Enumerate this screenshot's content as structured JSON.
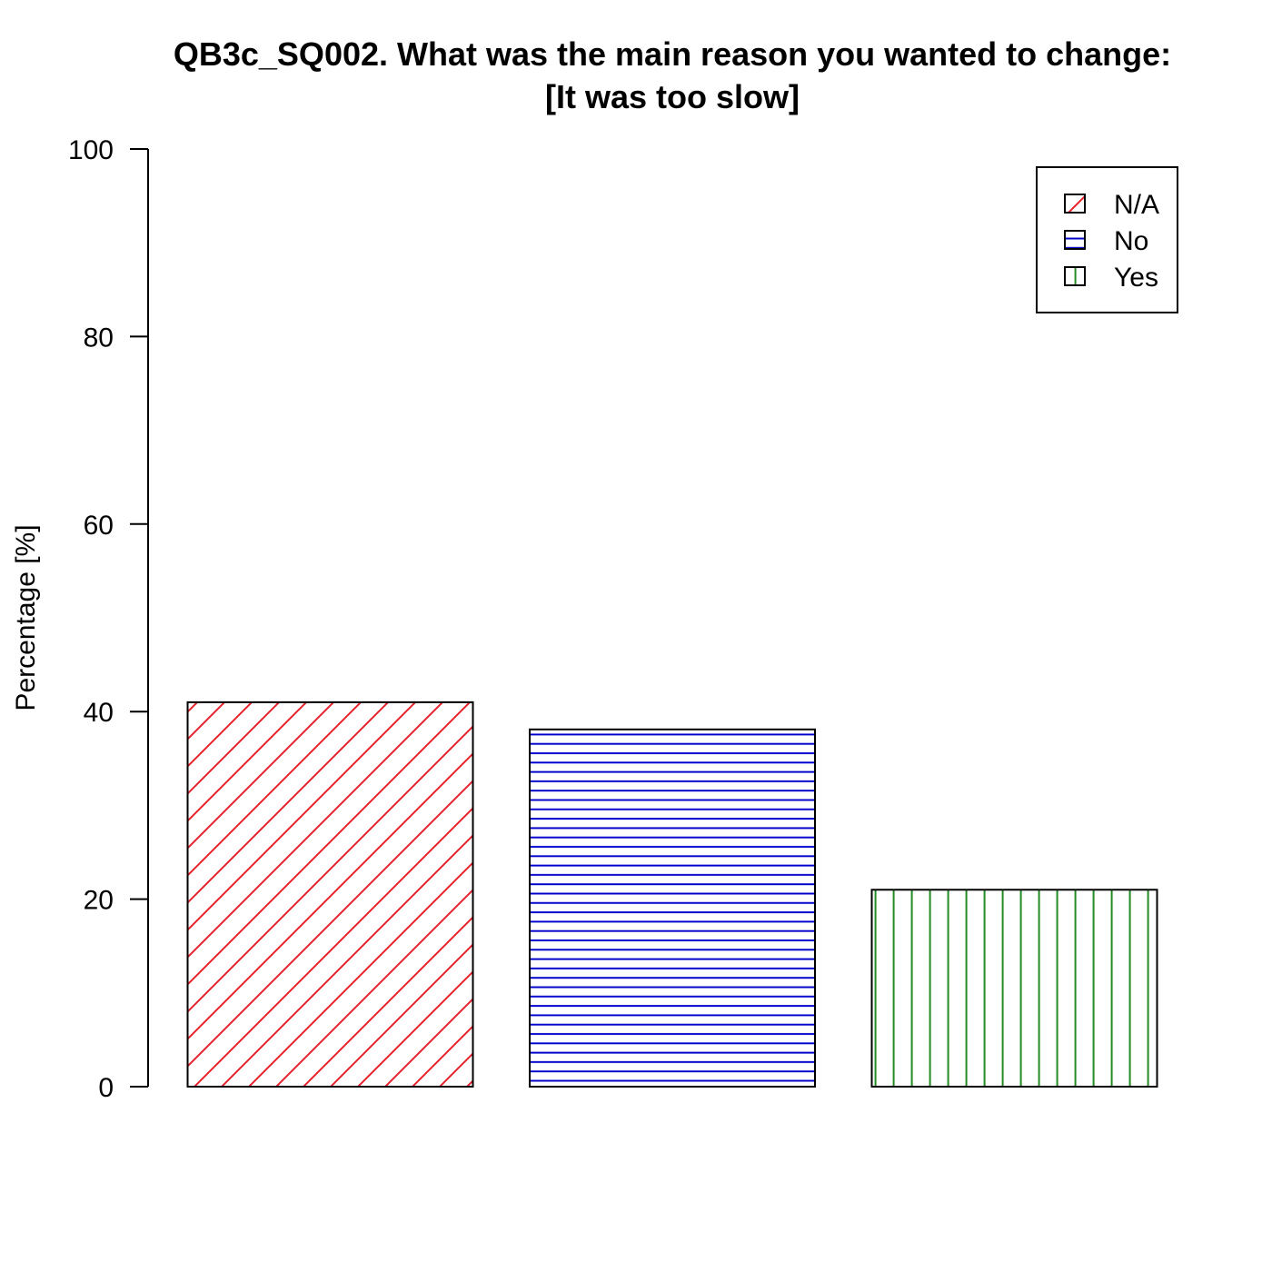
{
  "chart_data": {
    "type": "bar",
    "title_lines": [
      "QB3c_SQ002. What was the main reason you wanted to change:",
      "[It was too slow]"
    ],
    "xlabel": "",
    "ylabel": "Percentage [%]",
    "ylim": [
      0,
      100
    ],
    "yticks": [
      "0",
      "20",
      "40",
      "60",
      "80",
      "100"
    ],
    "grid": false,
    "legend_position": "top-right",
    "categories": [
      "N/A",
      "No",
      "Yes"
    ],
    "values": [
      41,
      38.1,
      21
    ],
    "series_styles": [
      {
        "pattern": "diagonal-hatch",
        "color": "#e8202a"
      },
      {
        "pattern": "horizontal-hatch",
        "color": "#0000cc"
      },
      {
        "pattern": "vertical-hatch",
        "color": "#228b22"
      }
    ]
  }
}
